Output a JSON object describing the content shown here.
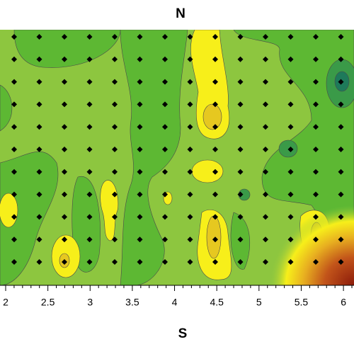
{
  "chart_data": {
    "type": "contour",
    "title": "N",
    "x_label": "S",
    "xlim": [
      1.933,
      6.125
    ],
    "xticks": [
      2,
      2.5,
      3,
      3.5,
      4,
      4.5,
      5,
      5.5,
      6
    ]
  }
}
